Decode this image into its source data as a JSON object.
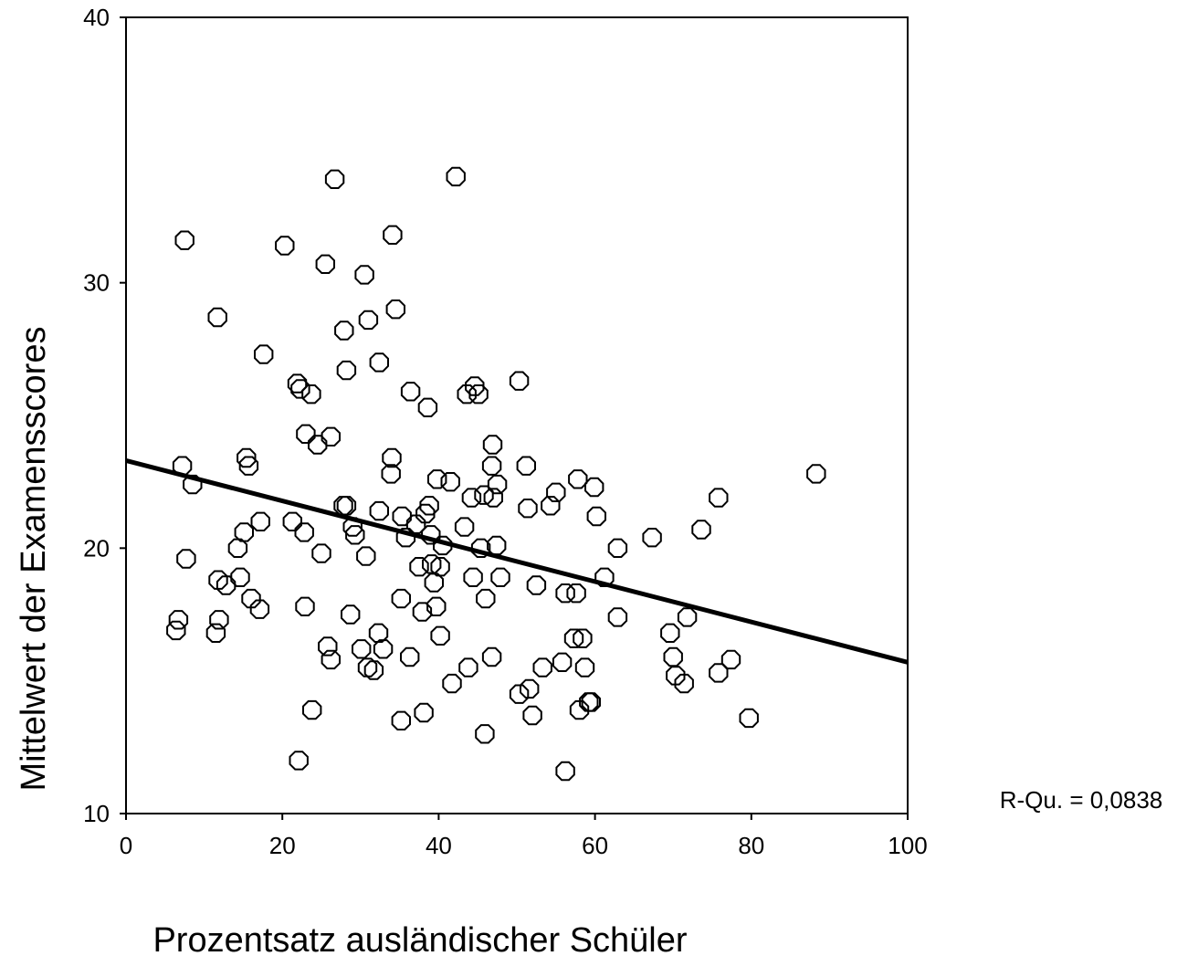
{
  "chart_data": {
    "type": "scatter",
    "xlabel": "Prozentsatz ausländischer Schüler",
    "ylabel": "Mittelwert der Examensscores",
    "xlim": [
      0,
      100
    ],
    "ylim": [
      10,
      40
    ],
    "x_ticks": [
      "0",
      "20",
      "40",
      "60",
      "80",
      "100"
    ],
    "y_ticks": [
      "10",
      "20",
      "30",
      "40"
    ],
    "annotation": "R-Qu. = 0,0838",
    "grid": false,
    "fit_line": {
      "x": [
        0,
        100
      ],
      "y": [
        23.3,
        15.7
      ]
    },
    "points": [
      [
        7.5,
        31.6
      ],
      [
        20.3,
        31.4
      ],
      [
        26.7,
        33.9
      ],
      [
        42.2,
        34.0
      ],
      [
        34.1,
        31.8
      ],
      [
        25.5,
        30.7
      ],
      [
        30.5,
        30.3
      ],
      [
        11.7,
        28.7
      ],
      [
        31.0,
        28.6
      ],
      [
        34.5,
        29.0
      ],
      [
        27.9,
        28.2
      ],
      [
        17.6,
        27.3
      ],
      [
        28.2,
        26.7
      ],
      [
        32.4,
        27.0
      ],
      [
        21.9,
        26.2
      ],
      [
        22.3,
        26.0
      ],
      [
        23.7,
        25.8
      ],
      [
        36.4,
        25.9
      ],
      [
        38.6,
        25.3
      ],
      [
        43.6,
        25.8
      ],
      [
        44.6,
        26.1
      ],
      [
        45.1,
        25.8
      ],
      [
        50.3,
        26.3
      ],
      [
        23.0,
        24.3
      ],
      [
        26.2,
        24.2
      ],
      [
        24.5,
        23.9
      ],
      [
        15.4,
        23.4
      ],
      [
        15.7,
        23.1
      ],
      [
        7.2,
        23.1
      ],
      [
        8.5,
        22.4
      ],
      [
        34.0,
        23.4
      ],
      [
        33.9,
        22.8
      ],
      [
        39.8,
        22.6
      ],
      [
        41.5,
        22.5
      ],
      [
        46.9,
        23.9
      ],
      [
        46.8,
        23.1
      ],
      [
        47.5,
        22.4
      ],
      [
        51.2,
        23.1
      ],
      [
        55.0,
        22.1
      ],
      [
        57.8,
        22.6
      ],
      [
        59.9,
        22.3
      ],
      [
        75.8,
        21.9
      ],
      [
        88.3,
        22.8
      ],
      [
        27.8,
        21.6
      ],
      [
        28.2,
        21.6
      ],
      [
        32.4,
        21.4
      ],
      [
        35.3,
        21.2
      ],
      [
        37.1,
        20.9
      ],
      [
        38.3,
        21.3
      ],
      [
        38.8,
        21.6
      ],
      [
        44.2,
        21.9
      ],
      [
        45.8,
        22.0
      ],
      [
        47.0,
        21.9
      ],
      [
        51.4,
        21.5
      ],
      [
        54.3,
        21.6
      ],
      [
        60.2,
        21.2
      ],
      [
        17.2,
        21.0
      ],
      [
        15.1,
        20.6
      ],
      [
        14.3,
        20.0
      ],
      [
        7.7,
        19.6
      ],
      [
        21.3,
        21.0
      ],
      [
        22.8,
        20.6
      ],
      [
        25.0,
        19.8
      ],
      [
        29.0,
        20.8
      ],
      [
        29.3,
        20.5
      ],
      [
        30.7,
        19.7
      ],
      [
        35.8,
        20.4
      ],
      [
        39.0,
        20.5
      ],
      [
        39.1,
        19.4
      ],
      [
        40.2,
        19.3
      ],
      [
        40.5,
        20.1
      ],
      [
        43.3,
        20.8
      ],
      [
        45.4,
        20.0
      ],
      [
        47.4,
        20.1
      ],
      [
        37.5,
        19.3
      ],
      [
        39.4,
        18.7
      ],
      [
        44.4,
        18.9
      ],
      [
        46.0,
        18.1
      ],
      [
        47.9,
        18.9
      ],
      [
        52.5,
        18.6
      ],
      [
        56.2,
        18.3
      ],
      [
        57.6,
        18.3
      ],
      [
        61.2,
        18.9
      ],
      [
        62.9,
        20.0
      ],
      [
        67.3,
        20.4
      ],
      [
        73.6,
        20.7
      ],
      [
        11.8,
        18.8
      ],
      [
        12.8,
        18.6
      ],
      [
        14.6,
        18.9
      ],
      [
        16.0,
        18.1
      ],
      [
        17.1,
        17.7
      ],
      [
        6.7,
        17.3
      ],
      [
        6.4,
        16.9
      ],
      [
        11.5,
        16.8
      ],
      [
        11.9,
        17.3
      ],
      [
        22.9,
        17.8
      ],
      [
        28.7,
        17.5
      ],
      [
        35.2,
        18.1
      ],
      [
        37.9,
        17.6
      ],
      [
        39.7,
        17.8
      ],
      [
        40.2,
        16.7
      ],
      [
        62.9,
        17.4
      ],
      [
        71.8,
        17.4
      ],
      [
        25.8,
        16.3
      ],
      [
        26.2,
        15.8
      ],
      [
        30.1,
        16.2
      ],
      [
        30.9,
        15.5
      ],
      [
        31.7,
        15.4
      ],
      [
        32.3,
        16.8
      ],
      [
        32.9,
        16.2
      ],
      [
        36.3,
        15.9
      ],
      [
        41.7,
        14.9
      ],
      [
        43.8,
        15.5
      ],
      [
        46.8,
        15.9
      ],
      [
        50.3,
        14.5
      ],
      [
        51.6,
        14.7
      ],
      [
        53.3,
        15.5
      ],
      [
        55.8,
        15.7
      ],
      [
        57.3,
        16.6
      ],
      [
        58.4,
        16.6
      ],
      [
        58.7,
        15.5
      ],
      [
        69.6,
        16.8
      ],
      [
        70.0,
        15.9
      ],
      [
        70.3,
        15.2
      ],
      [
        71.4,
        14.9
      ],
      [
        75.8,
        15.3
      ],
      [
        77.4,
        15.8
      ],
      [
        23.8,
        13.9
      ],
      [
        38.1,
        13.8
      ],
      [
        35.2,
        13.5
      ],
      [
        45.9,
        13.0
      ],
      [
        52.0,
        13.7
      ],
      [
        58.0,
        13.9
      ],
      [
        59.2,
        14.2
      ],
      [
        59.5,
        14.2
      ],
      [
        79.7,
        13.6
      ],
      [
        22.1,
        12.0
      ],
      [
        56.2,
        11.6
      ]
    ]
  }
}
